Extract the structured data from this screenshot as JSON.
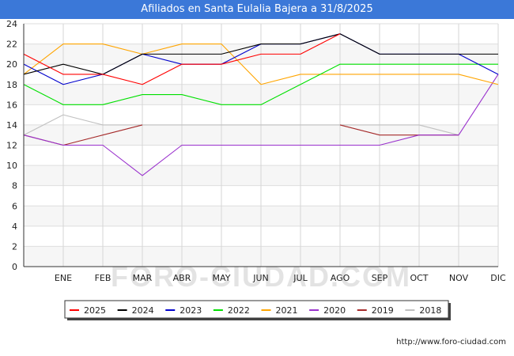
{
  "chart_data": {
    "type": "line",
    "title": "Afiliados en Santa Eulalia Bajera a 31/8/2025",
    "categories": [
      "",
      "ENE",
      "FEB",
      "MAR",
      "ABR",
      "MAY",
      "JUN",
      "JUL",
      "AGO",
      "SEP",
      "OCT",
      "NOV",
      "DIC"
    ],
    "ylim": [
      0,
      24
    ],
    "yticks": [
      0,
      2,
      4,
      6,
      8,
      10,
      12,
      14,
      16,
      18,
      20,
      22,
      24
    ],
    "grid": "horizontal and vertical",
    "legend_position": "bottom",
    "series": [
      {
        "name": "2018",
        "color": "#c0c0c0",
        "values": [
          13,
          15,
          14,
          14,
          14,
          14,
          14,
          14,
          14,
          14,
          14,
          13,
          null
        ]
      },
      {
        "name": "2019",
        "color": "#a52a2a",
        "values": [
          13,
          12,
          13,
          14,
          null,
          null,
          null,
          null,
          14,
          13,
          13,
          13,
          null
        ]
      },
      {
        "name": "2020",
        "color": "#9a32cd",
        "values": [
          13,
          12,
          12,
          9,
          12,
          12,
          12,
          12,
          12,
          12,
          13,
          13,
          19
        ]
      },
      {
        "name": "2021",
        "color": "#ffa500",
        "values": [
          19,
          22,
          22,
          21,
          22,
          22,
          18,
          19,
          19,
          19,
          19,
          19,
          18
        ]
      },
      {
        "name": "2022",
        "color": "#00e000",
        "values": [
          18,
          16,
          16,
          17,
          17,
          16,
          16,
          18,
          20,
          20,
          20,
          20,
          20
        ]
      },
      {
        "name": "2023",
        "color": "#0000cc",
        "values": [
          20,
          18,
          19,
          21,
          20,
          20,
          22,
          22,
          23,
          21,
          21,
          21,
          19
        ]
      },
      {
        "name": "2024",
        "color": "#000000",
        "values": [
          19,
          20,
          19,
          21,
          21,
          21,
          22,
          22,
          23,
          21,
          21,
          21,
          21
        ]
      },
      {
        "name": "2025",
        "color": "#ff0000",
        "values": [
          21,
          19,
          19,
          18,
          20,
          20,
          21,
          21,
          23,
          null,
          null,
          null,
          null
        ]
      }
    ],
    "legend_order": [
      "2025",
      "2024",
      "2023",
      "2022",
      "2021",
      "2020",
      "2019",
      "2018"
    ],
    "watermark": "FORO-CIUDAD.COM"
  },
  "footer": {
    "url": "http://www.foro-ciudad.com"
  }
}
